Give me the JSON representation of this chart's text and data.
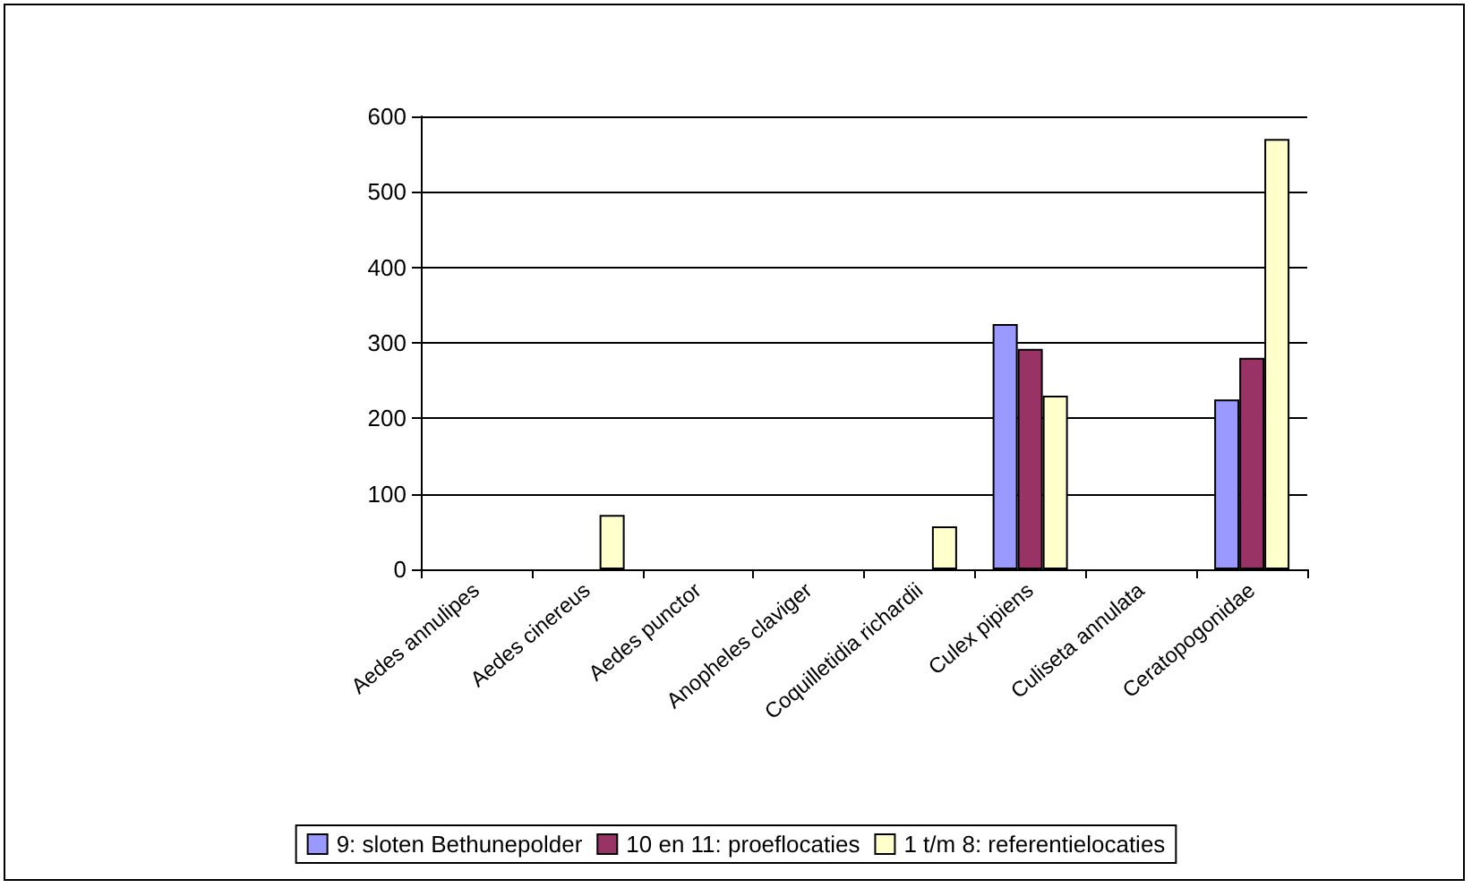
{
  "chart_data": {
    "type": "bar",
    "categories": [
      "Aedes annulipes",
      "Aedes cinereus",
      "Aedes punctor",
      "Anopheles claviger",
      "Coquilletidia richardii",
      "Culex pipiens",
      "Culiseta annulata",
      "Ceratopogonidae"
    ],
    "series": [
      {
        "name": "9: sloten Bethunepolder",
        "color": "#9999ff",
        "values": [
          0,
          0,
          0,
          0,
          0,
          325,
          0,
          225
        ]
      },
      {
        "name": "10 en 11: proeflocaties",
        "color": "#993366",
        "values": [
          0,
          0,
          0,
          0,
          0,
          292,
          0,
          280
        ]
      },
      {
        "name": "1 t/m 8: referentielocaties",
        "color": "#ffffcc",
        "values": [
          0,
          72,
          0,
          0,
          57,
          230,
          0,
          570
        ]
      }
    ],
    "ylim": [
      0,
      600
    ],
    "yticks": [
      0,
      100,
      200,
      300,
      400,
      500,
      600
    ],
    "grid": "y",
    "legend": "bottom"
  }
}
